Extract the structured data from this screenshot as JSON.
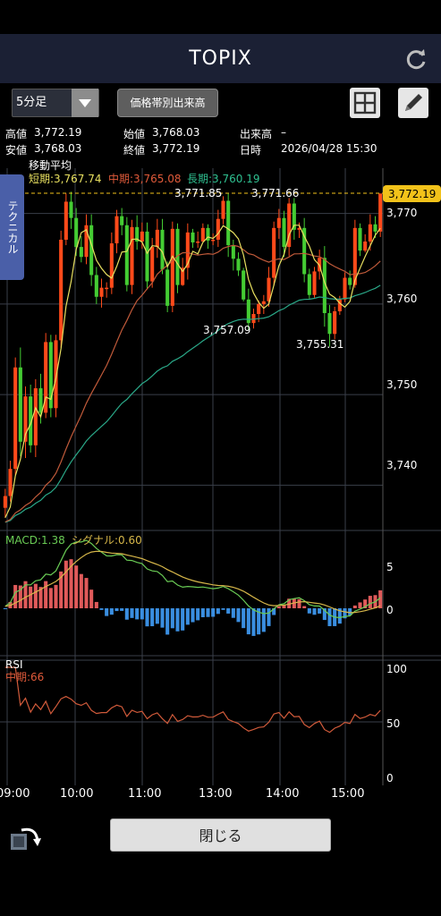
{
  "title": "TOPIX",
  "toolbar": {
    "period": "5分足",
    "volume_button": "価格帯別出来高"
  },
  "info": {
    "high_label": "高値",
    "high_value": "3,772.19",
    "open_label": "始値",
    "open_value": "3,768.03",
    "volume_label": "出来高",
    "volume_value": "–",
    "low_label": "安値",
    "low_value": "3,768.03",
    "close_label": "終値",
    "close_value": "3,772.19",
    "datetime_label": "日時",
    "datetime_value": "2026/04/28 15:30"
  },
  "side_tab": "テクニカル",
  "ma": {
    "title": "移動平均",
    "short": "短期:3,767.74",
    "mid": "中期:3,765.08",
    "long": "長期:3,760.19"
  },
  "price_axis": {
    "ticks": [
      "3,770",
      "3,760",
      "3,750",
      "3,740"
    ],
    "current": "3,772.19"
  },
  "annotations": {
    "a1": "3,771.85",
    "a2": "3,771.66",
    "a3": "3,757.09",
    "a4": "3,755.31"
  },
  "macd": {
    "label": "MACD:1.38",
    "signal": "シグナル:0.60",
    "ticks": [
      "5",
      "0"
    ]
  },
  "rsi": {
    "label": "RSI",
    "mid": "中期:66",
    "ticks": [
      "100",
      "50",
      "0"
    ]
  },
  "time_axis": [
    "09:00",
    "10:00",
    "11:00",
    "13:00",
    "14:00",
    "15:00"
  ],
  "close_button": "閉じる",
  "colors": {
    "up": "#ff4a1a",
    "down": "#44cc33",
    "short_ma": "#e8e060",
    "mid_ma": "#c05a3a",
    "long_ma": "#2aa888",
    "macd": "#6acc55",
    "signal": "#d8b84a",
    "hist_up": "#e05a5a",
    "hist_down": "#3a8ee0",
    "rsi": "#d05a3a",
    "current_price": "#f2c21a"
  },
  "chart_data": {
    "type": "candlestick",
    "title": "TOPIX",
    "interval": "5分足",
    "high": 3772.19,
    "low": 3768.03,
    "open": 3768.03,
    "close": 3772.19,
    "ylim": [
      3735,
      3775
    ],
    "x_ticks": [
      "09:00",
      "10:00",
      "11:00",
      "13:00",
      "14:00",
      "15:00"
    ],
    "moving_averages": [
      {
        "name": "短期",
        "value": 3767.74
      },
      {
        "name": "中期",
        "value": 3765.08
      },
      {
        "name": "長期",
        "value": 3760.19
      }
    ],
    "annotations": [
      3771.85,
      3771.66,
      3757.09,
      3755.31
    ],
    "candles": [
      [
        3737.5,
        3738.8,
        3739.6,
        3736.4
      ],
      [
        3738.8,
        3741.8,
        3742.7,
        3738.2
      ],
      [
        3741.8,
        3753.0,
        3754.1,
        3741.1
      ],
      [
        3753.0,
        3744.8,
        3755.2,
        3743.2
      ],
      [
        3744.8,
        3749.8,
        3750.9,
        3743.0
      ],
      [
        3749.8,
        3744.4,
        3751.1,
        3743.6
      ],
      [
        3744.4,
        3750.7,
        3751.7,
        3743.1
      ],
      [
        3750.7,
        3748.0,
        3752.3,
        3746.8
      ],
      [
        3748.0,
        3755.8,
        3756.8,
        3747.4
      ],
      [
        3755.8,
        3748.5,
        3756.6,
        3747.5
      ],
      [
        3748.5,
        3756.0,
        3756.6,
        3747.5
      ],
      [
        3756.0,
        3767.1,
        3768.1,
        3755.2
      ],
      [
        3767.1,
        3771.3,
        3772.2,
        3766.5
      ],
      [
        3771.3,
        3769.5,
        3772.4,
        3768.3
      ],
      [
        3769.5,
        3766.3,
        3770.6,
        3765.3
      ],
      [
        3766.3,
        3765.2,
        3767.5,
        3764.6
      ],
      [
        3765.2,
        3768.7,
        3769.9,
        3764.4
      ],
      [
        3768.7,
        3763.2,
        3769.9,
        3762.0
      ],
      [
        3763.2,
        3760.8,
        3764.1,
        3760.0
      ],
      [
        3760.8,
        3761.8,
        3762.8,
        3759.6
      ],
      [
        3761.8,
        3761.8,
        3762.4,
        3760.7
      ],
      [
        3761.8,
        3766.7,
        3767.9,
        3761.1
      ],
      [
        3766.7,
        3769.7,
        3770.4,
        3765.6
      ],
      [
        3769.7,
        3768.7,
        3770.6,
        3767.6
      ],
      [
        3768.7,
        3762.1,
        3769.6,
        3761.4
      ],
      [
        3762.1,
        3768.5,
        3769.3,
        3761.1
      ],
      [
        3768.5,
        3766.9,
        3769.8,
        3766.0
      ],
      [
        3766.9,
        3768.0,
        3769.0,
        3766.1
      ],
      [
        3768.0,
        3762.5,
        3769.0,
        3761.6
      ],
      [
        3762.5,
        3766.3,
        3767.3,
        3761.8
      ],
      [
        3766.3,
        3768.2,
        3769.4,
        3765.1
      ],
      [
        3768.2,
        3763.8,
        3769.4,
        3763.3
      ],
      [
        3763.8,
        3759.8,
        3764.7,
        3759.1
      ],
      [
        3759.8,
        3768.3,
        3769.1,
        3759.1
      ],
      [
        3768.3,
        3762.1,
        3768.9,
        3761.2
      ],
      [
        3762.1,
        3764.0,
        3765.1,
        3762.0
      ],
      [
        3764.0,
        3767.9,
        3768.9,
        3762.7
      ],
      [
        3767.9,
        3766.8,
        3768.3,
        3766.2
      ],
      [
        3766.8,
        3766.9,
        3768.0,
        3766.2
      ],
      [
        3766.9,
        3768.4,
        3768.9,
        3767.7
      ],
      [
        3768.4,
        3767.0,
        3768.8,
        3766.1
      ],
      [
        3767.0,
        3767.1,
        3767.8,
        3766.5
      ],
      [
        3767.1,
        3769.4,
        3770.4,
        3766.3
      ],
      [
        3769.4,
        3771.4,
        3771.9,
        3768.8
      ],
      [
        3771.4,
        3766.5,
        3772.2,
        3765.2
      ],
      [
        3766.5,
        3765.0,
        3767.1,
        3763.7
      ],
      [
        3765.0,
        3763.7,
        3765.7,
        3763.1
      ],
      [
        3763.7,
        3760.5,
        3764.0,
        3760.3
      ],
      [
        3760.5,
        3757.9,
        3761.7,
        3757.1
      ],
      [
        3757.9,
        3758.9,
        3759.5,
        3757.3
      ],
      [
        3758.9,
        3760.0,
        3760.4,
        3758.0
      ],
      [
        3760.0,
        3760.3,
        3761.0,
        3758.9
      ],
      [
        3760.3,
        3762.9,
        3764.1,
        3759.7
      ],
      [
        3762.9,
        3768.4,
        3769.1,
        3762.0
      ],
      [
        3768.4,
        3769.5,
        3770.5,
        3767.2
      ],
      [
        3769.5,
        3766.3,
        3770.3,
        3765.2
      ],
      [
        3766.3,
        3771.1,
        3771.7,
        3765.3
      ],
      [
        3771.1,
        3768.2,
        3771.7,
        3767.1
      ],
      [
        3768.2,
        3768.4,
        3769.0,
        3767.3
      ],
      [
        3768.4,
        3763.3,
        3769.5,
        3762.4
      ],
      [
        3763.3,
        3761.0,
        3763.9,
        3760.6
      ],
      [
        3761.0,
        3763.6,
        3764.1,
        3760.7
      ],
      [
        3763.6,
        3765.1,
        3766.0,
        3762.7
      ],
      [
        3765.1,
        3759.0,
        3766.4,
        3757.5
      ],
      [
        3759.0,
        3756.7,
        3759.9,
        3755.3
      ],
      [
        3756.7,
        3759.2,
        3759.7,
        3756.1
      ],
      [
        3759.2,
        3760.5,
        3760.9,
        3758.8
      ],
      [
        3760.5,
        3762.9,
        3763.5,
        3760.2
      ],
      [
        3762.9,
        3762.1,
        3763.7,
        3761.6
      ],
      [
        3762.1,
        3768.4,
        3769.3,
        3761.8
      ],
      [
        3768.4,
        3765.9,
        3768.9,
        3765.3
      ],
      [
        3765.9,
        3766.9,
        3767.7,
        3765.7
      ],
      [
        3766.9,
        3768.8,
        3769.9,
        3765.9
      ],
      [
        3768.8,
        3768.0,
        3769.7,
        3767.3
      ],
      [
        3768.0,
        3772.2,
        3772.2,
        3767.4
      ]
    ]
  }
}
